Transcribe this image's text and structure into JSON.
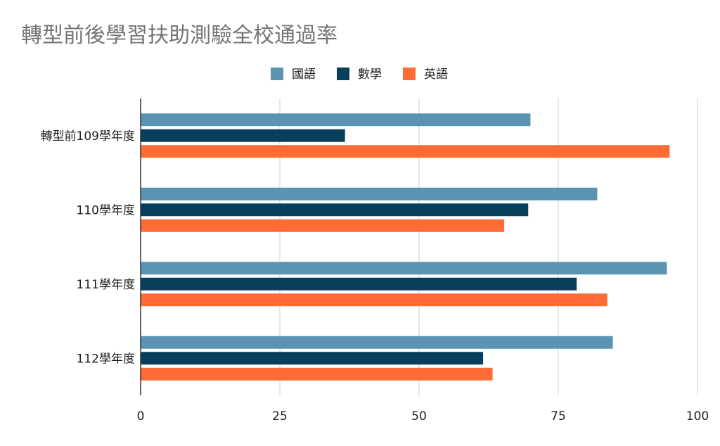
{
  "chart_data": {
    "type": "bar",
    "orientation": "horizontal",
    "title": "轉型前後學習扶助測驗全校通過率",
    "categories": [
      "轉型前109學年度",
      "110學年度",
      "111學年度",
      "112學年度"
    ],
    "series": [
      {
        "name": "國語",
        "color": "#5b94b3",
        "values": [
          70,
          82,
          94.5,
          84.8
        ]
      },
      {
        "name": "數學",
        "color": "#073f5c",
        "values": [
          36.7,
          69.6,
          78.3,
          61.5
        ]
      },
      {
        "name": "英語",
        "color": "#ff6b35",
        "values": [
          95,
          65.3,
          83.8,
          63.2
        ]
      }
    ],
    "xlim": [
      0,
      100
    ],
    "xticks": [
      0,
      25,
      50,
      75,
      100
    ],
    "grid": true,
    "legend_position": "top-center"
  }
}
